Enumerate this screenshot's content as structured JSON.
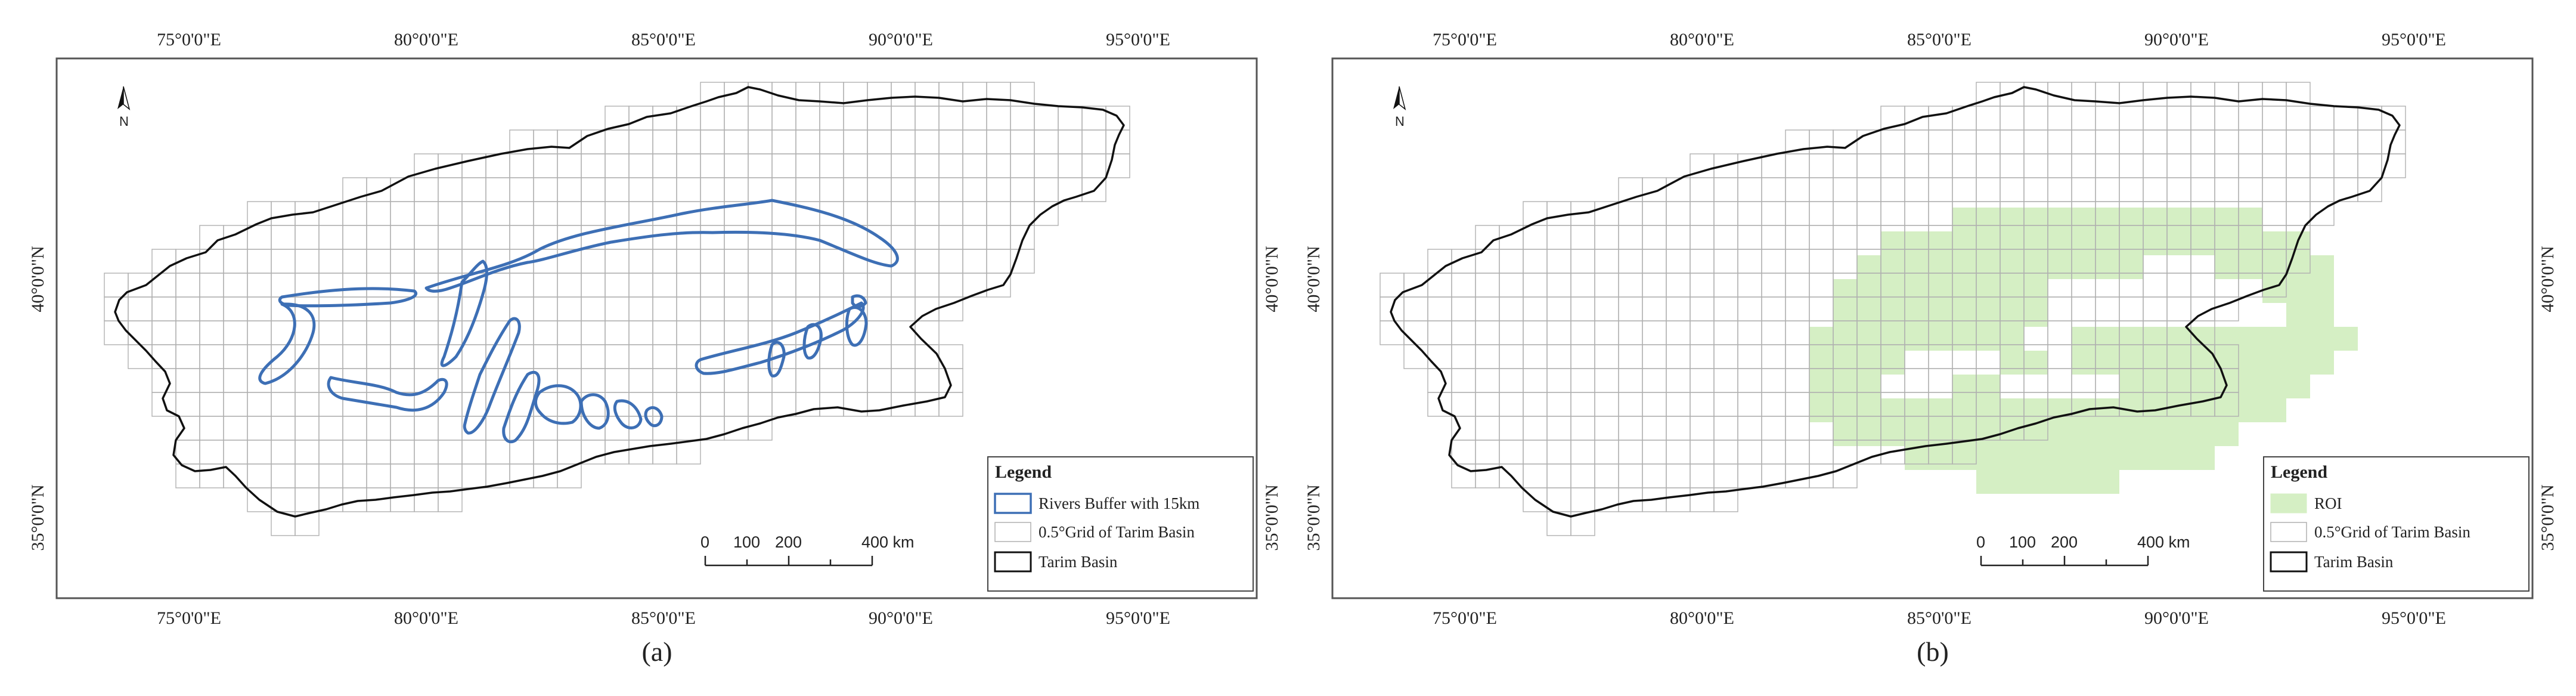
{
  "figure": {
    "panels": [
      {
        "id": "a",
        "caption": "(a)",
        "lon_ticks": [
          "75°0'0\"E",
          "80°0'0\"E",
          "85°0'0\"E",
          "90°0'0\"E",
          "95°0'0\"E"
        ],
        "lat_ticks": [
          "40°0'0\"N",
          "35°0'0\"N"
        ],
        "north_label": "N",
        "legend": {
          "title": "Legend",
          "items": [
            "Rivers Buffer with 15km",
            "0.5°Grid of Tarim Basin",
            "Tarim Basin"
          ]
        },
        "scale": {
          "labels": [
            "0",
            "100",
            "200",
            "400 km"
          ]
        }
      },
      {
        "id": "b",
        "caption": "(b)",
        "lon_ticks": [
          "75°0'0\"E",
          "80°0'0\"E",
          "85°0'0\"E",
          "90°0'0\"E",
          "95°0'0\"E"
        ],
        "lat_ticks": [
          "40°0'0\"N",
          "35°0'0\"N"
        ],
        "north_label": "N",
        "legend": {
          "title": "Legend",
          "items": [
            "ROI",
            "0.5°Grid of Tarim Basin",
            "Tarim Basin"
          ]
        },
        "scale": {
          "labels": [
            "0",
            "100",
            "200",
            "400 km"
          ]
        }
      }
    ],
    "colors": {
      "river_buffer": "#3d6fb5",
      "roi_fill": "#d5efc4",
      "grid": "#b0b0b0",
      "basin": "#111111",
      "frame": "#555555"
    }
  }
}
